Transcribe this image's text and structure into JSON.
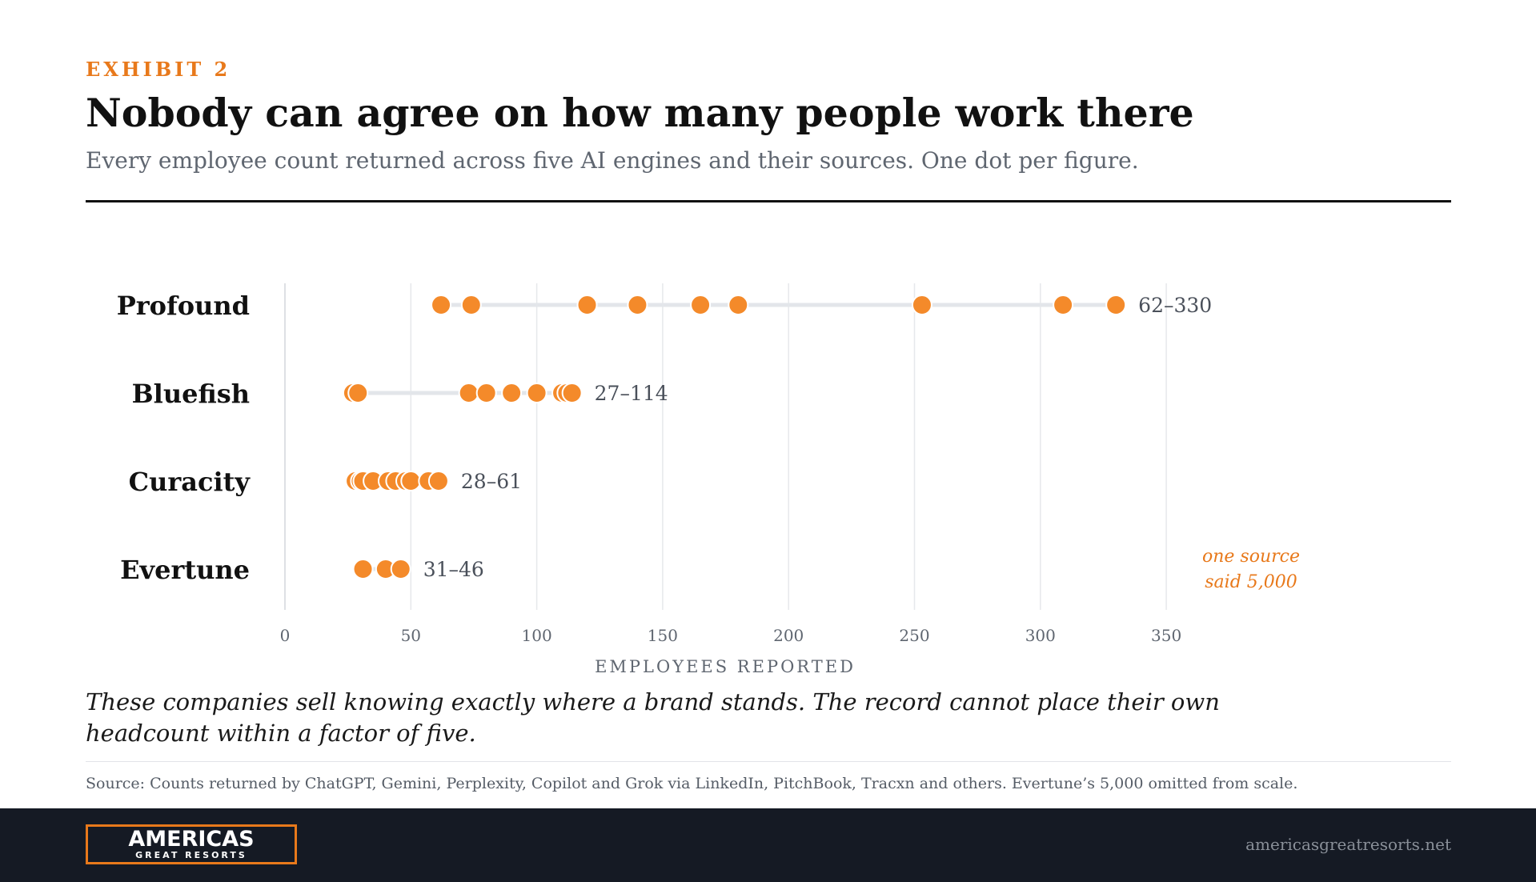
{
  "header": {
    "exhibit": "EXHIBIT 2",
    "title": "Nobody can agree on how many people work there",
    "subtitle": "Every employee count returned across five AI engines and their sources. One dot per figure."
  },
  "chart_data": {
    "type": "scatter",
    "orientation": "horizontal-dot-strip",
    "xlabel": "EMPLOYEES REPORTED",
    "xlim": [
      0,
      350
    ],
    "xticks": [
      0,
      50,
      100,
      150,
      200,
      250,
      300,
      350
    ],
    "grid": true,
    "series": [
      {
        "name": "Profound",
        "values": [
          62,
          74,
          120,
          140,
          165,
          180,
          253,
          309,
          330
        ],
        "range_label": "62–330"
      },
      {
        "name": "Bluefish",
        "values": [
          27,
          29,
          73,
          80,
          90,
          100,
          110,
          112,
          114
        ],
        "range_label": "27–114"
      },
      {
        "name": "Curacity",
        "values": [
          28,
          30,
          31,
          35,
          41,
          44,
          48,
          50,
          57,
          61
        ],
        "range_label": "28–61"
      },
      {
        "name": "Evertune",
        "values": [
          31,
          40,
          46
        ],
        "range_label": "31–46"
      }
    ],
    "annotation": {
      "lines": [
        "one source",
        "said 5,000"
      ]
    },
    "colors": {
      "dot": "#f48a2a",
      "dot_stroke": "#ffffff",
      "range_line": "#e3e6ea",
      "grid": "#e6e8eb",
      "annotation": "#e8791b"
    }
  },
  "takeaway": "These companies sell knowing exactly where a brand stands. The record cannot place their own headcount within a factor of five.",
  "source": "Source: Counts returned by ChatGPT, Gemini, Perplexity, Copilot and Grok via LinkedIn, PitchBook, Tracxn and others. Evertune’s 5,000 omitted from scale.",
  "footer": {
    "logo_main": "AMERICAS",
    "logo_sub": "GREAT RESORTS",
    "site": "americasgreatresorts.net"
  }
}
